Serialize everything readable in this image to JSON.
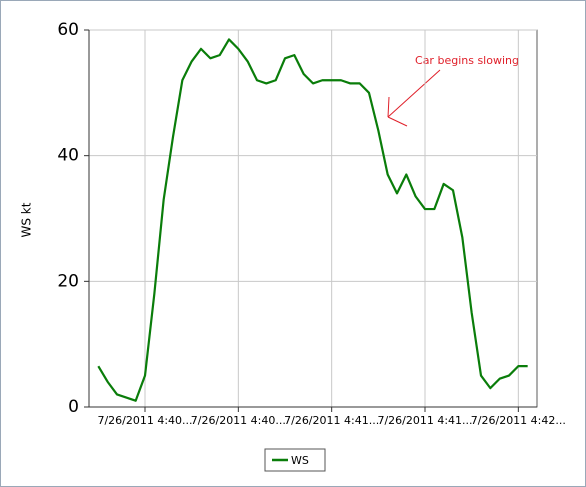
{
  "chart_data": {
    "type": "line",
    "y_label": "WS kt",
    "annotation": "Car begins slowing",
    "x": [
      5,
      6,
      7,
      8,
      9,
      10,
      11,
      12,
      13,
      14,
      15,
      16,
      17,
      18,
      19,
      20,
      21,
      22,
      23,
      24,
      25,
      26,
      27,
      28,
      29,
      30,
      31,
      32,
      33,
      34,
      35,
      36,
      37,
      38,
      39,
      40,
      41,
      42,
      43,
      44,
      45,
      46,
      47,
      48,
      49,
      50,
      51
    ],
    "series": [
      {
        "name": "WS",
        "color": "#0a7d0a",
        "values": [
          6.5,
          4,
          2,
          1.5,
          1,
          5,
          18,
          33,
          43,
          52,
          55,
          57,
          55.5,
          56,
          58.5,
          57,
          55,
          52,
          51.5,
          52,
          55.5,
          56,
          53,
          51.5,
          52,
          52,
          52,
          51.5,
          51.5,
          50,
          44,
          37,
          34,
          37,
          33.5,
          31.5,
          31.5,
          35.5,
          34.5,
          27,
          15,
          5,
          3,
          4.5,
          5,
          6.5,
          6.5
        ]
      }
    ],
    "xlim": [
      4,
      52
    ],
    "xticks": [
      {
        "value": 10,
        "label": "7/26/2011 4:40..."
      },
      {
        "value": 20,
        "label": "7/26/2011 4:40..."
      },
      {
        "value": 30,
        "label": "7/26/2011 4:41..."
      },
      {
        "value": 40,
        "label": "7/26/2011 4:41..."
      },
      {
        "value": 50,
        "label": "7/26/2011 4:42..."
      }
    ],
    "ylim": [
      0,
      60
    ],
    "yticks": [
      0,
      20,
      40,
      60
    ],
    "grid": true
  }
}
